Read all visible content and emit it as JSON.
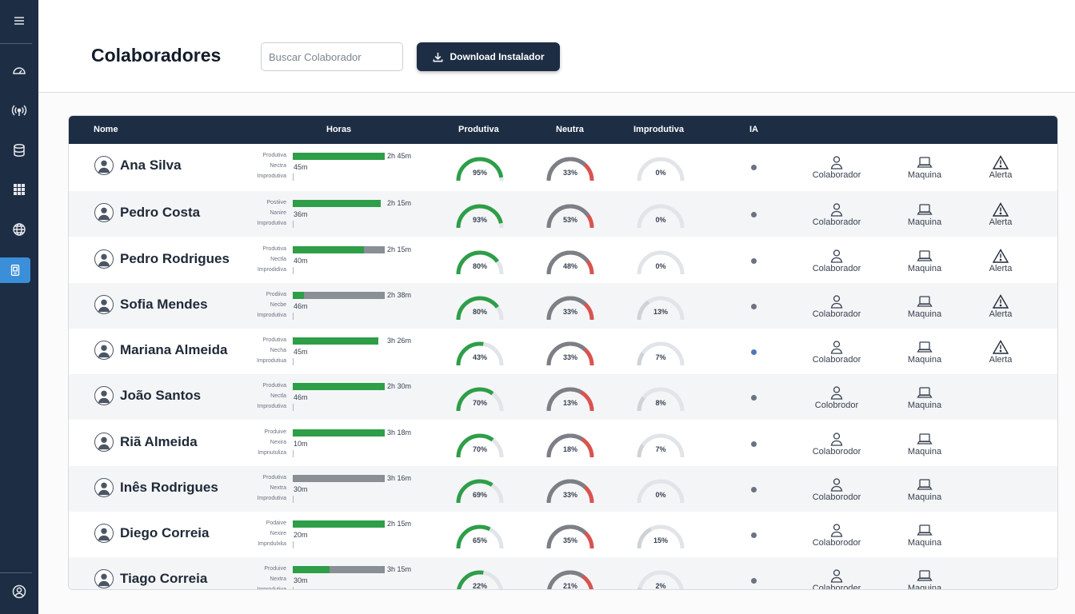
{
  "page": {
    "title": "Colaboradores"
  },
  "search": {
    "placeholder": "Buscar Colaborador",
    "value": ""
  },
  "download_button": {
    "label": "Download Instalador"
  },
  "sidebar": {
    "icons": [
      "menu-icon",
      "dashboard-icon",
      "signal-icon",
      "database-icon",
      "grid-icon",
      "globe-icon",
      "device-icon",
      "user-icon"
    ],
    "active": "device-icon"
  },
  "table": {
    "headers": {
      "nome": "Nome",
      "horas": "Horas",
      "produtiva": "Produtiva",
      "neutra": "Neutra",
      "improdutiva": "Improdutiva",
      "ia": "IA"
    },
    "rows": [
      {
        "name": "Ana Silva",
        "hour_labels": [
          "Produtiva",
          "Nectra",
          "Improdutiva"
        ],
        "productive_time": "2h 45m",
        "neutral_time": "45m",
        "bar_green": 1.0,
        "bar_gray": 0.0,
        "produtiva": "95%",
        "neutra": "33%",
        "improdutiva": "0%",
        "actions": [
          "Colaborador",
          "Maquina",
          "Alerta"
        ]
      },
      {
        "name": "Pedro Costa",
        "hour_labels": [
          "Postiive",
          "Nanire",
          "Improdutiva"
        ],
        "productive_time": "2h 15m",
        "neutral_time": "36m",
        "bar_green": 0.96,
        "bar_gray": 0.0,
        "produtiva": "93%",
        "neutra": "53%",
        "improdutiva": "0%",
        "actions": [
          "Colaborador",
          "Maquina",
          "Alerta"
        ]
      },
      {
        "name": "Pedro Rodrigues",
        "hour_labels": [
          "Produtiva",
          "Nectla",
          "Improdidiva"
        ],
        "productive_time": "2h 15m",
        "neutral_time": "40m",
        "bar_green": 0.77,
        "bar_gray": 0.23,
        "produtiva": "80%",
        "neutra": "48%",
        "improdutiva": "0%",
        "actions": [
          "Colaborador",
          "Maquina",
          "Alerta"
        ]
      },
      {
        "name": "Sofia Mendes",
        "hour_labels": [
          "Prodiiva",
          "Necbe",
          "Improdutiva"
        ],
        "productive_time": "2h 38m",
        "neutral_time": "46m",
        "bar_green": 0.12,
        "bar_gray": 0.88,
        "produtiva": "80%",
        "neutra": "33%",
        "improdutiva": "13%",
        "actions": [
          "Colaborador",
          "Maquina",
          "Alerta"
        ]
      },
      {
        "name": "Mariana Almeida",
        "hour_labels": [
          "Produtiva",
          "Necha",
          "Improdutiua"
        ],
        "productive_time": "3h 26m",
        "neutral_time": "45m",
        "bar_green": 0.93,
        "bar_gray": 0.0,
        "produtiva": "43%",
        "neutra": "33%",
        "improdutiva": "7%",
        "actions": [
          "Colaborador",
          "Maquina",
          "Alerta"
        ]
      },
      {
        "name": "João Santos",
        "hour_labels": [
          "Produtiva",
          "Nectla",
          "Improdutiva"
        ],
        "productive_time": "2h 30m",
        "neutral_time": "46m",
        "bar_green": 1.0,
        "bar_gray": 0.0,
        "produtiva": "70%",
        "neutra": "13%",
        "improdutiva": "8%",
        "actions": [
          "Colobrodor",
          "Maquina"
        ]
      },
      {
        "name": "Riã  Almeida",
        "hour_labels": [
          "Produive",
          "Nexira",
          "Impnutuliza"
        ],
        "productive_time": "3h 18m",
        "neutral_time": "10m",
        "bar_green": 1.0,
        "bar_gray": 0.0,
        "produtiva": "70%",
        "neutra": "18%",
        "improdutiva": "7%",
        "actions": [
          "Colaborodor",
          "Maquina"
        ]
      },
      {
        "name": "Inês Rodrigues",
        "hour_labels": [
          "Produtiva",
          "Nextra",
          "Improdutiva"
        ],
        "productive_time": "3h 16m",
        "neutral_time": "30m",
        "bar_green": 0.0,
        "bar_gray": 1.0,
        "produtiva": "69%",
        "neutra": "33%",
        "improdutiva": "0%",
        "actions": [
          "Colaborodor",
          "Maquina"
        ]
      },
      {
        "name": "Diego Correia",
        "hour_labels": [
          "Podaive",
          "Nexire",
          "Impndulxka"
        ],
        "productive_time": "2h 15m",
        "neutral_time": "20m",
        "bar_green": 1.0,
        "bar_gray": 0.0,
        "produtiva": "65%",
        "neutra": "35%",
        "improdutiva": "15%",
        "actions": [
          "Colaborodor",
          "Maquina"
        ]
      },
      {
        "name": "Tiago Correia",
        "hour_labels": [
          "Produive",
          "Nextra",
          "Improdutiva"
        ],
        "productive_time": "3h 15m",
        "neutral_time": "30m",
        "bar_green": 0.4,
        "bar_gray": 0.6,
        "produtiva": "22%",
        "neutra": "21%",
        "improdutiva": "2%",
        "actions": [
          "Colaboroder",
          "Maquina"
        ]
      }
    ]
  },
  "colors": {
    "sidebar": "#1d2d44",
    "header_row": "#1d2d44",
    "green": "#2e9e48",
    "gray": "#8a8f96",
    "red": "#d9534f",
    "track": "#e1e4e8",
    "accent": "#3a8fd8"
  }
}
